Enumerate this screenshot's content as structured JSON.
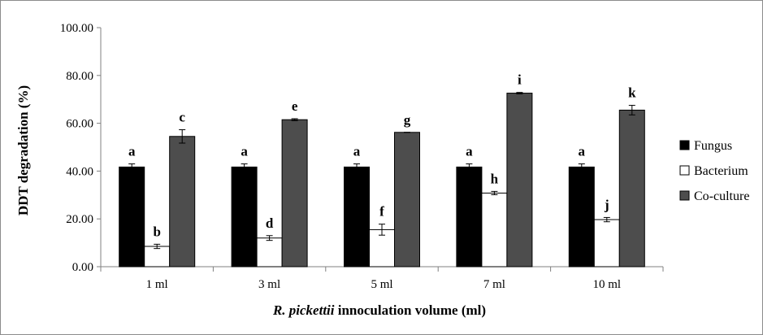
{
  "chart_data": {
    "type": "bar",
    "title": "",
    "ylabel": "DDT degradation (%)",
    "xlabel_italic": "R. pickettii",
    "xlabel_rest": " innoculation volume (ml)",
    "ylim": [
      0,
      100
    ],
    "yticks": [
      "0.00",
      "20.00",
      "40.00",
      "60.00",
      "80.00",
      "100.00"
    ],
    "ytick_values": [
      0,
      20,
      40,
      60,
      80,
      100
    ],
    "categories": [
      "1 ml",
      "3 ml",
      "5 ml",
      "7 ml",
      "10 ml"
    ],
    "legend_position": "right",
    "grid": false,
    "series": [
      {
        "name": "Fungus",
        "color": "#000000",
        "values": [
          41.7,
          41.7,
          41.7,
          41.7,
          41.7
        ],
        "errors": [
          1.3,
          1.3,
          1.3,
          1.3,
          1.3
        ],
        "labels": [
          "a",
          "a",
          "a",
          "a",
          "a"
        ]
      },
      {
        "name": "Bacterium",
        "color": "#ffffff",
        "values": [
          8.5,
          12.0,
          15.5,
          30.8,
          19.7
        ],
        "errors": [
          0.9,
          1.0,
          2.3,
          0.7,
          0.9
        ],
        "labels": [
          "b",
          "d",
          "f",
          "h",
          "j"
        ]
      },
      {
        "name": "Co-culture",
        "color": "#4d4d4d",
        "values": [
          54.5,
          61.5,
          56.2,
          72.6,
          65.5
        ],
        "errors": [
          2.8,
          0.4,
          0.0,
          0.3,
          2.0
        ],
        "labels": [
          "c",
          "e",
          "g",
          "i",
          "k"
        ]
      }
    ]
  }
}
